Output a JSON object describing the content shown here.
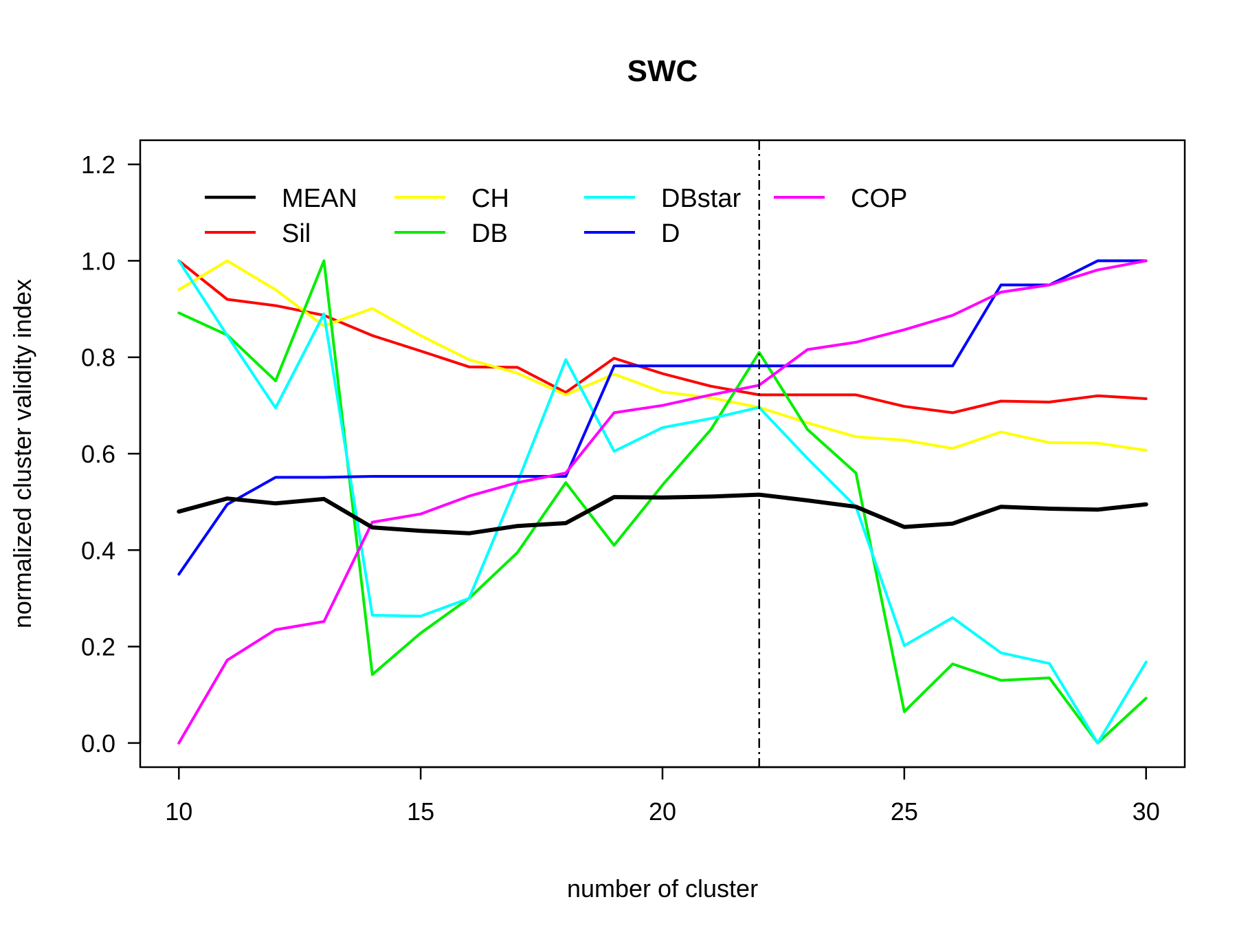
{
  "chart_data": {
    "type": "line",
    "title": "SWC",
    "xlabel": "number of cluster",
    "ylabel": "normalized cluster validity index",
    "xlim": [
      9.2,
      30.8
    ],
    "ylim": [
      -0.05,
      1.25
    ],
    "xticks": [
      10,
      15,
      20,
      25,
      30
    ],
    "xtick_labels": [
      "10",
      "15",
      "20",
      "25",
      "30"
    ],
    "yticks": [
      0.0,
      0.2,
      0.4,
      0.6,
      0.8,
      1.0,
      1.2
    ],
    "ytick_labels": [
      "0.0",
      "0.2",
      "0.4",
      "0.6",
      "0.8",
      "1.0",
      "1.2"
    ],
    "grid": false,
    "legend_position": "top",
    "vline": {
      "x": 22,
      "style": "dotdash",
      "color": "#000000"
    },
    "x": [
      10,
      11,
      12,
      13,
      14,
      15,
      16,
      17,
      18,
      19,
      20,
      21,
      22,
      23,
      24,
      25,
      26,
      27,
      28,
      29,
      30
    ],
    "series": [
      {
        "name": "MEAN",
        "color": "#000000",
        "width": 6,
        "values": [
          0.48,
          0.507,
          0.497,
          0.506,
          0.447,
          0.44,
          0.435,
          0.45,
          0.456,
          0.51,
          0.509,
          0.511,
          0.515,
          0.503,
          0.49,
          0.448,
          0.455,
          0.49,
          0.486,
          0.484,
          0.495
        ]
      },
      {
        "name": "Sil",
        "color": "#ff0000",
        "width": 4,
        "values": [
          1.0,
          0.92,
          0.907,
          0.887,
          0.845,
          0.813,
          0.78,
          0.779,
          0.727,
          0.798,
          0.766,
          0.74,
          0.722,
          0.722,
          0.722,
          0.698,
          0.685,
          0.709,
          0.707,
          0.72,
          0.714
        ]
      },
      {
        "name": "CH",
        "color": "#ffff00",
        "width": 4,
        "values": [
          0.94,
          1.0,
          0.94,
          0.865,
          0.901,
          0.845,
          0.795,
          0.767,
          0.722,
          0.765,
          0.728,
          0.716,
          0.696,
          0.664,
          0.635,
          0.628,
          0.611,
          0.645,
          0.623,
          0.622,
          0.607
        ]
      },
      {
        "name": "DB",
        "color": "#00ee00",
        "width": 4,
        "values": [
          0.892,
          0.846,
          0.751,
          1.0,
          0.142,
          0.228,
          0.3,
          0.395,
          0.54,
          0.41,
          0.535,
          0.65,
          0.81,
          0.65,
          0.56,
          0.065,
          0.164,
          0.13,
          0.135,
          0.0,
          0.093
        ]
      },
      {
        "name": "DBstar",
        "color": "#00ffff",
        "width": 4,
        "values": [
          1.0,
          0.845,
          0.695,
          0.89,
          0.265,
          0.263,
          0.3,
          0.54,
          0.795,
          0.605,
          0.654,
          0.673,
          0.696,
          0.59,
          0.49,
          0.202,
          0.26,
          0.187,
          0.165,
          0.0,
          0.168
        ]
      },
      {
        "name": "D",
        "color": "#0000ff",
        "width": 4,
        "values": [
          0.35,
          0.495,
          0.551,
          0.551,
          0.553,
          0.553,
          0.553,
          0.553,
          0.553,
          0.782,
          0.782,
          0.782,
          0.782,
          0.782,
          0.782,
          0.782,
          0.782,
          0.95,
          0.95,
          1.0,
          1.0
        ]
      },
      {
        "name": "COP",
        "color": "#ff00ff",
        "width": 4,
        "values": [
          0.0,
          0.172,
          0.235,
          0.252,
          0.458,
          0.475,
          0.512,
          0.54,
          0.56,
          0.685,
          0.7,
          0.722,
          0.742,
          0.816,
          0.831,
          0.857,
          0.887,
          0.935,
          0.95,
          0.981,
          1.0
        ]
      }
    ],
    "legend_order": [
      "MEAN",
      "CH",
      "DBstar",
      "COP",
      "Sil",
      "DB",
      "D"
    ]
  }
}
